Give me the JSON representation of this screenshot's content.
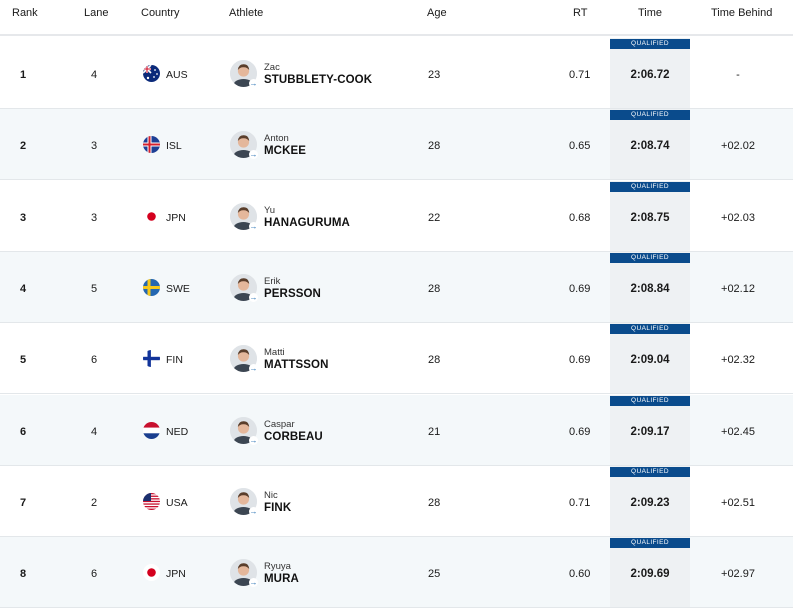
{
  "header": {
    "rank": "Rank",
    "lane": "Lane",
    "country": "Country",
    "athlete": "Athlete",
    "age": "Age",
    "rt": "RT",
    "time": "Time",
    "time_behind": "Time Behind"
  },
  "qualified_label": "QUALIFIED",
  "rows": [
    {
      "rank": "1",
      "lane": "4",
      "country": "AUS",
      "flag": "flag-australia-icon",
      "first": "Zac",
      "last": "STUBBLETY-COOK",
      "age": "23",
      "rt": "0.71",
      "time": "2:06.72",
      "behind": "-"
    },
    {
      "rank": "2",
      "lane": "3",
      "country": "ISL",
      "flag": "flag-iceland-icon",
      "first": "Anton",
      "last": "MCKEE",
      "age": "28",
      "rt": "0.65",
      "time": "2:08.74",
      "behind": "+02.02"
    },
    {
      "rank": "3",
      "lane": "3",
      "country": "JPN",
      "flag": "flag-japan-icon",
      "first": "Yu",
      "last": "HANAGURUMA",
      "age": "22",
      "rt": "0.68",
      "time": "2:08.75",
      "behind": "+02.03"
    },
    {
      "rank": "4",
      "lane": "5",
      "country": "SWE",
      "flag": "flag-sweden-icon",
      "first": "Erik",
      "last": "PERSSON",
      "age": "28",
      "rt": "0.69",
      "time": "2:08.84",
      "behind": "+02.12"
    },
    {
      "rank": "5",
      "lane": "6",
      "country": "FIN",
      "flag": "flag-finland-icon",
      "first": "Matti",
      "last": "MATTSSON",
      "age": "28",
      "rt": "0.69",
      "time": "2:09.04",
      "behind": "+02.32"
    },
    {
      "rank": "6",
      "lane": "4",
      "country": "NED",
      "flag": "flag-netherlands-icon",
      "first": "Caspar",
      "last": "CORBEAU",
      "age": "21",
      "rt": "0.69",
      "time": "2:09.17",
      "behind": "+02.45"
    },
    {
      "rank": "7",
      "lane": "2",
      "country": "USA",
      "flag": "flag-usa-icon",
      "first": "Nic",
      "last": "FINK",
      "age": "28",
      "rt": "0.71",
      "time": "2:09.23",
      "behind": "+02.51"
    },
    {
      "rank": "8",
      "lane": "6",
      "country": "JPN",
      "flag": "flag-japan-icon",
      "first": "Ryuya",
      "last": "MURA",
      "age": "25",
      "rt": "0.60",
      "time": "2:09.69",
      "behind": "+02.97"
    }
  ],
  "colors": {
    "qualified_badge": "#0a4b8c",
    "row_alt": "#f4f8fa",
    "time_column": "#eef1f3",
    "link_arrow": "#1c6bb0"
  }
}
